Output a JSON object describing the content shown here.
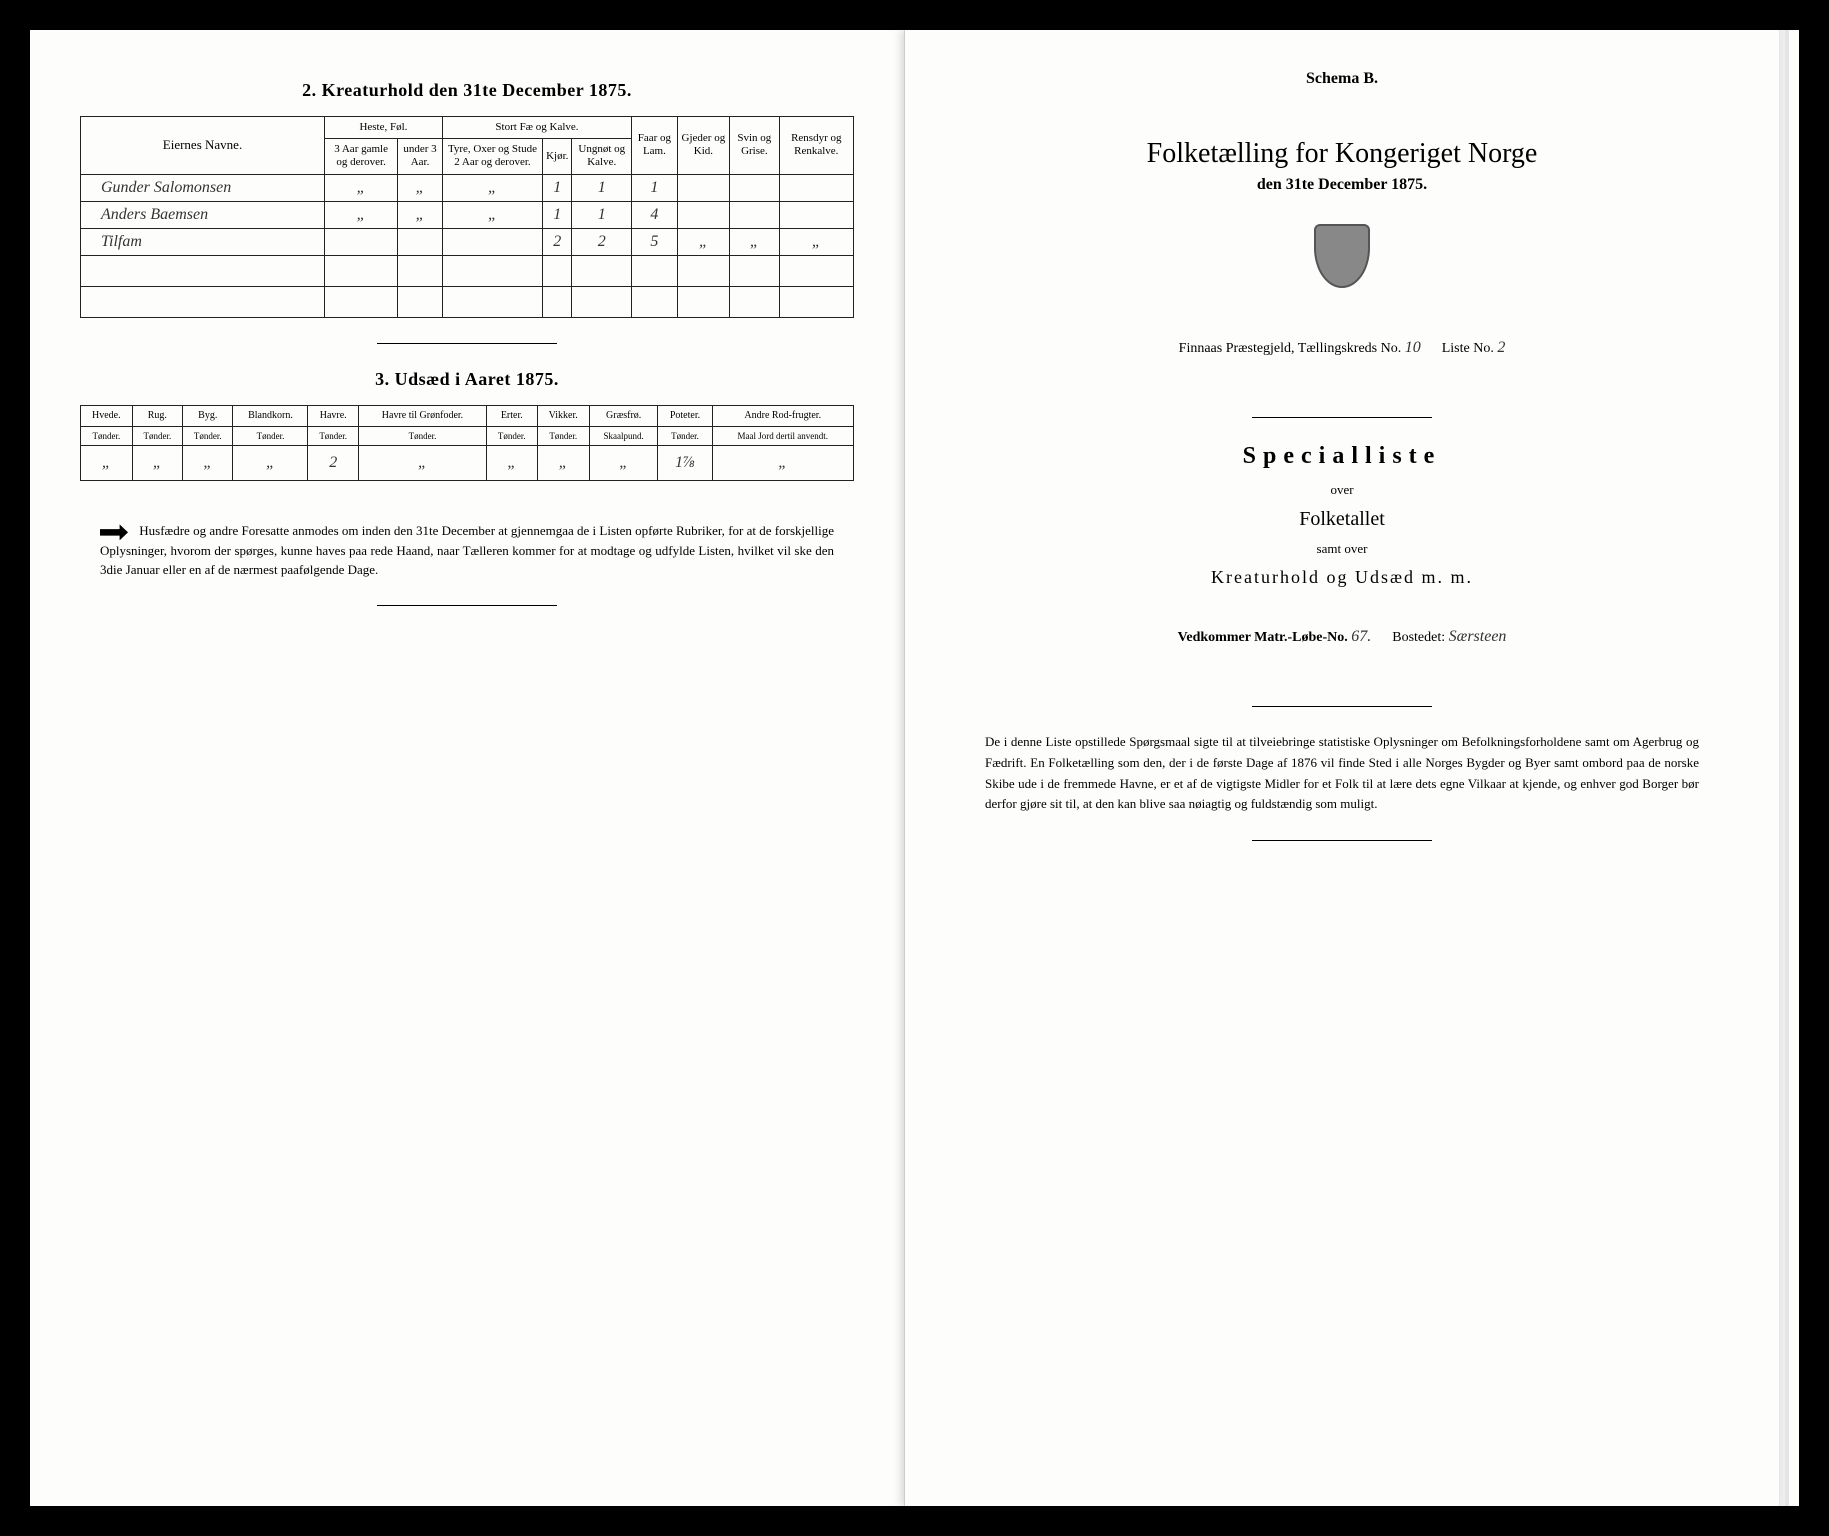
{
  "left": {
    "section2_title": "2.  Kreaturhold den 31te December 1875.",
    "table2": {
      "headers": {
        "name": "Eiernes Navne.",
        "group_heste": "Heste, Føl.",
        "group_stort": "Stort Fæ og Kalve.",
        "faar": "Faar og Lam.",
        "gjeder": "Gjeder og Kid.",
        "svin": "Svin og Grise.",
        "rensdyr": "Rensdyr og Renkalve.",
        "heste_a": "3 Aar gamle og derover.",
        "heste_b": "under 3 Aar.",
        "stort_a": "Tyre, Oxer og Stude 2 Aar og derover.",
        "stort_b": "Kjør.",
        "stort_c": "Ungnøt og Kalve."
      },
      "rows": [
        {
          "name": "Gunder Salomonsen",
          "c1": "„",
          "c2": "„",
          "c3": "„",
          "c4": "1",
          "c5": "1",
          "c6": "1",
          "c7": "",
          "c8": "",
          "c9": ""
        },
        {
          "name": "Anders Baemsen",
          "c1": "„",
          "c2": "„",
          "c3": "„",
          "c4": "1",
          "c5": "1",
          "c6": "4",
          "c7": "",
          "c8": "",
          "c9": ""
        },
        {
          "name": "Tilfam",
          "c1": "",
          "c2": "",
          "c3": "",
          "c4": "2",
          "c5": "2",
          "c6": "5",
          "c7": "„",
          "c8": "„",
          "c9": "„"
        }
      ]
    },
    "section3_title": "3.  Udsæd i Aaret 1875.",
    "table3": {
      "headers": [
        "Hvede.",
        "Rug.",
        "Byg.",
        "Blandkorn.",
        "Havre.",
        "Havre til Grønfoder.",
        "Erter.",
        "Vikker.",
        "Græsfrø.",
        "Poteter.",
        "Andre Rod-frugter."
      ],
      "subheaders": [
        "Tønder.",
        "Tønder.",
        "Tønder.",
        "Tønder.",
        "Tønder.",
        "Tønder.",
        "Tønder.",
        "Tønder.",
        "Skaalpund.",
        "Tønder.",
        "Maal Jord dertil anvendt."
      ],
      "row": [
        "„",
        "„",
        "„",
        "„",
        "2",
        "„",
        "„",
        "„",
        "„",
        "1⅞",
        "„"
      ]
    },
    "footnote": "Husfædre og andre Foresatte anmodes om inden den 31te December at gjennemgaa de i Listen opførte Rubriker, for at de forskjellige Oplysninger, hvorom der spørges, kunne haves paa rede Haand, naar Tælleren kommer for at modtage og udfylde Listen, hvilket vil ske den 3die Januar eller en af de nærmest paafølgende Dage."
  },
  "right": {
    "schema": "Schema B.",
    "main_title": "Folketælling for Kongeriget Norge",
    "sub_date": "den 31te December 1875.",
    "meta_prefix": "Finnaas  Præstegjeld,  Tællingskreds No.",
    "meta_kreds": "10",
    "meta_liste_label": "Liste No.",
    "meta_liste": "2",
    "specialliste": "Specialliste",
    "over": "over",
    "folketallet": "Folketallet",
    "samt": "samt over",
    "kreatur": "Kreaturhold og Udsæd m. m.",
    "vedkommer_label": "Vedkommer Matr.-Løbe-No.",
    "vedkommer_no": "67.",
    "bostedet_label": "Bostedet:",
    "bostedet": "Særsteen",
    "footnote": "De i denne Liste opstillede Spørgsmaal sigte til at tilveiebringe statistiske Oplysninger om Befolkningsforholdene samt om Agerbrug og Fædrift.  En Folketælling som den, der i de første Dage af 1876 vil finde Sted i alle Norges Bygder og Byer samt ombord paa de norske Skibe ude i de fremmede Havne, er et af de vigtigste Midler for et Folk til at lære dets egne Vilkaar at kjende, og enhver god Borger bør derfor gjøre sit til, at den kan blive saa nøiagtig og fuldstændig som muligt."
  }
}
